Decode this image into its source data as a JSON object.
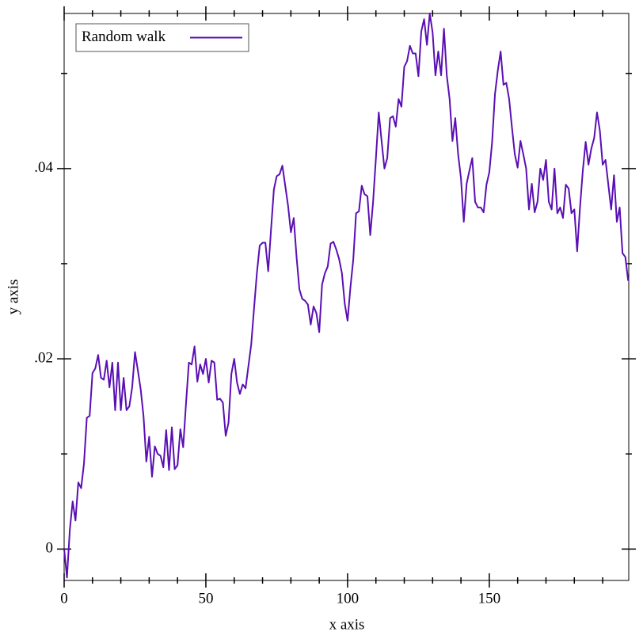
{
  "chart_data": {
    "type": "line",
    "x_label": "x axis",
    "y_label": "y axis",
    "xlim": [
      0,
      199.2
    ],
    "ylim": [
      -0.0033,
      0.0563
    ],
    "xticks": [
      0,
      50,
      100,
      150
    ],
    "xminor_ticks": [
      10,
      20,
      30,
      40,
      60,
      70,
      80,
      90,
      110,
      120,
      130,
      140,
      160,
      170,
      180,
      190
    ],
    "yticks": [
      0,
      {
        "value": 0.02,
        "label": ".02"
      },
      {
        "value": 0.04,
        "label": ".04"
      }
    ],
    "yminor_ticks": [
      0.01,
      0.03,
      0.05
    ],
    "legend": "upper-left",
    "x": [
      0,
      1,
      2,
      3,
      4,
      5,
      6,
      7,
      8,
      9,
      10,
      11,
      12,
      13,
      14,
      15,
      16,
      17,
      18,
      19,
      20,
      21,
      22,
      23,
      24,
      25,
      26,
      27,
      28,
      29,
      30,
      31,
      32,
      33,
      34,
      35,
      36,
      37,
      38,
      39,
      40,
      41,
      42,
      43,
      44,
      45,
      46,
      47,
      48,
      49,
      50,
      51,
      52,
      53,
      54,
      55,
      56,
      57,
      58,
      59,
      60,
      61,
      62,
      63,
      64,
      65,
      66,
      67,
      68,
      69,
      70,
      71,
      72,
      73,
      74,
      75,
      76,
      77,
      78,
      79,
      80,
      81,
      82,
      83,
      84,
      85,
      86,
      87,
      88,
      89,
      90,
      91,
      92,
      93,
      94,
      95,
      96,
      97,
      98,
      99,
      100,
      101,
      102,
      103,
      104,
      105,
      106,
      107,
      108,
      109,
      110,
      111,
      112,
      113,
      114,
      115,
      116,
      117,
      118,
      119,
      120,
      121,
      122,
      123,
      124,
      125,
      126,
      127,
      128,
      129,
      130,
      131,
      132,
      133,
      134,
      135,
      136,
      137,
      138,
      139,
      140,
      141,
      142,
      143,
      144,
      145,
      146,
      147,
      148,
      149,
      150,
      151,
      152,
      153,
      154,
      155,
      156,
      157,
      158,
      159,
      160,
      161,
      162,
      163,
      164,
      165,
      166,
      167,
      168,
      169,
      170,
      171,
      172,
      173,
      174,
      175,
      176,
      177,
      178,
      179,
      180,
      181,
      182,
      183,
      184,
      185,
      186,
      187,
      188,
      189,
      190,
      191,
      192,
      193,
      194,
      195,
      196,
      197,
      198,
      199
    ],
    "series": [
      {
        "name": "Random walk",
        "color": "#5a0fb4",
        "values": [
          0,
          -0.003,
          0.002,
          0.005,
          0.003,
          0.007,
          0.0064,
          0.009,
          0.0138,
          0.014,
          0.0185,
          0.019,
          0.0204,
          0.018,
          0.0178,
          0.0198,
          0.017,
          0.0196,
          0.0146,
          0.0196,
          0.0146,
          0.018,
          0.0146,
          0.015,
          0.017,
          0.0207,
          0.0188,
          0.0168,
          0.014,
          0.0092,
          0.0118,
          0.0076,
          0.0108,
          0.01,
          0.0098,
          0.0086,
          0.0125,
          0.0083,
          0.0128,
          0.0084,
          0.0088,
          0.0126,
          0.0107,
          0.0153,
          0.0196,
          0.0194,
          0.0213,
          0.0176,
          0.0194,
          0.0184,
          0.02,
          0.0175,
          0.0198,
          0.0196,
          0.0157,
          0.0158,
          0.0154,
          0.0119,
          0.0133,
          0.0184,
          0.02,
          0.0175,
          0.0163,
          0.0173,
          0.0169,
          0.0192,
          0.0215,
          0.0253,
          0.029,
          0.0319,
          0.0322,
          0.0322,
          0.0292,
          0.0336,
          0.0378,
          0.0392,
          0.0394,
          0.0403,
          0.0382,
          0.0361,
          0.0333,
          0.0348,
          0.0307,
          0.0273,
          0.0263,
          0.0261,
          0.0257,
          0.0236,
          0.0255,
          0.0248,
          0.0228,
          0.0278,
          0.029,
          0.0297,
          0.0321,
          0.0323,
          0.0315,
          0.0305,
          0.029,
          0.0258,
          0.024,
          0.0275,
          0.0304,
          0.0353,
          0.0355,
          0.0382,
          0.0373,
          0.0371,
          0.033,
          0.0365,
          0.0411,
          0.0459,
          0.0429,
          0.04,
          0.0411,
          0.0453,
          0.0455,
          0.0444,
          0.0473,
          0.0465,
          0.0507,
          0.0513,
          0.0529,
          0.0521,
          0.0521,
          0.0497,
          0.0544,
          0.0557,
          0.053,
          0.0563,
          0.0543,
          0.0498,
          0.0523,
          0.0498,
          0.0547,
          0.0498,
          0.0473,
          0.0429,
          0.0453,
          0.0415,
          0.039,
          0.0344,
          0.0384,
          0.0398,
          0.0411,
          0.0365,
          0.0359,
          0.0359,
          0.0354,
          0.0383,
          0.0396,
          0.0428,
          0.0478,
          0.0503,
          0.0523,
          0.0488,
          0.049,
          0.0473,
          0.0443,
          0.0415,
          0.0401,
          0.0429,
          0.0415,
          0.04,
          0.0357,
          0.0384,
          0.0354,
          0.0365,
          0.04,
          0.0388,
          0.0409,
          0.0365,
          0.0357,
          0.04,
          0.0353,
          0.0359,
          0.0348,
          0.0383,
          0.0379,
          0.0353,
          0.0357,
          0.0313,
          0.0359,
          0.0398,
          0.0428,
          0.0404,
          0.0421,
          0.0432,
          0.0459,
          0.044,
          0.0404,
          0.0409,
          0.0383,
          0.0357,
          0.0393,
          0.0344,
          0.0359,
          0.0311,
          0.0307,
          0.0282
        ]
      }
    ]
  }
}
